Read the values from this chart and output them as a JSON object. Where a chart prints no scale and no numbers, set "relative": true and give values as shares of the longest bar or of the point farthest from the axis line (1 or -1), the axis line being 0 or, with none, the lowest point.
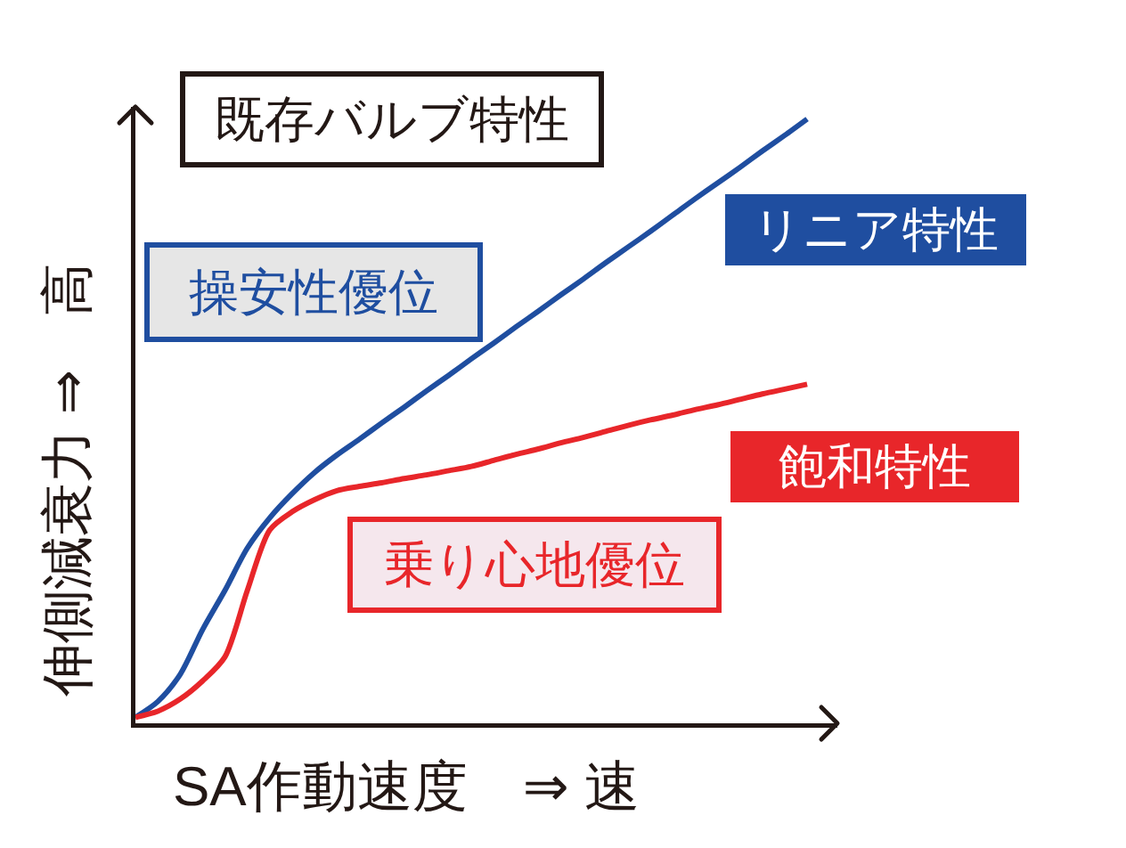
{
  "chart_data": {
    "type": "line",
    "relative": true,
    "xlabel": "SA作動速度　⇒ 速",
    "ylabel": "伸側減衰力 ⇒　高",
    "categories": [
      null,
      null,
      null,
      null,
      null,
      null,
      null,
      null,
      null,
      null,
      null,
      null,
      null,
      null,
      null,
      null,
      null,
      null,
      null,
      null,
      null,
      null,
      null,
      null,
      null,
      null,
      null,
      null,
      null,
      null,
      null
    ],
    "series": [
      {
        "name": "リニア特性",
        "color": "#1f4ea0",
        "values": [
          0.01,
          0.036,
          0.081,
          0.155,
          0.22,
          0.29,
          0.34,
          0.38,
          0.415,
          0.444,
          0.47,
          0.497,
          0.523,
          0.55,
          0.576,
          0.603,
          0.629,
          0.656,
          0.682,
          0.709,
          0.735,
          0.762,
          0.788,
          0.814,
          0.841,
          0.868,
          0.894,
          0.92,
          0.947,
          0.973,
          1
        ]
      },
      {
        "name": "飽和特性",
        "color": "#e8262a",
        "values": [
          0.01,
          0.02,
          0.04,
          0.07,
          0.11,
          0.22,
          0.32,
          0.35,
          0.37,
          0.385,
          0.392,
          0.398,
          0.405,
          0.411,
          0.418,
          0.425,
          0.435,
          0.445,
          0.454,
          0.464,
          0.473,
          0.483,
          0.493,
          0.502,
          0.51,
          0.519,
          0.527,
          0.536,
          0.545,
          0.553,
          0.561
        ]
      }
    ],
    "annotations": [
      "既存バルブ特性",
      "操安性優位",
      "乗り心地優位"
    ],
    "legend": false,
    "marker": "none",
    "line_style": "solid"
  }
}
